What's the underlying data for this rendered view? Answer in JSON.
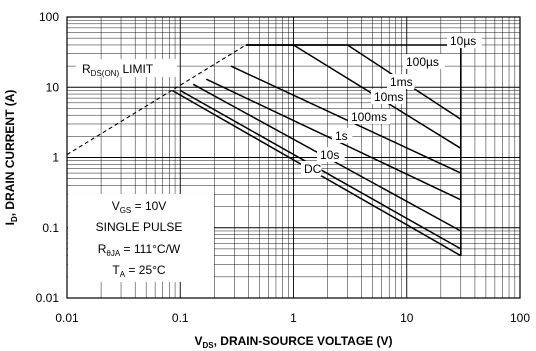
{
  "chart_data": {
    "type": "line",
    "x_scale": "log",
    "y_scale": "log",
    "xlim": [
      0.01,
      100
    ],
    "ylim": [
      0.01,
      100
    ],
    "grid": true,
    "x_ticks": [
      "0.01",
      "0.1",
      "1",
      "10",
      "100"
    ],
    "y_ticks": [
      "0.01",
      "0.1",
      "1",
      "10",
      "100"
    ],
    "xlabel": {
      "main": "V",
      "sub": "DS",
      "rest": ", DRAIN-SOURCE VOLTAGE (V)"
    },
    "ylabel": {
      "main": "I",
      "sub": "D",
      "rest": ", DRAIN CURRENT (A)"
    },
    "rdson_limit": {
      "label_main": "R",
      "label_sub": "DS(ON)",
      "label_rest": " LIMIT",
      "x": [
        0.01,
        0.38
      ],
      "y": [
        1.1,
        40
      ]
    },
    "series": [
      {
        "name": "10µs",
        "x": [
          0.38,
          6.0,
          30
        ],
        "y": [
          40,
          40,
          40
        ]
      },
      {
        "name": "100µs",
        "x": [
          0.38,
          3.0,
          30
        ],
        "y": [
          40,
          40,
          3.5
        ]
      },
      {
        "name": "1ms",
        "x": [
          0.38,
          1.0,
          30
        ],
        "y": [
          40,
          40,
          1.35
        ]
      },
      {
        "name": "10ms",
        "x": [
          0.28,
          30
        ],
        "y": [
          20,
          0.6
        ]
      },
      {
        "name": "100ms",
        "x": [
          0.17,
          30
        ],
        "y": [
          13,
          0.25
        ]
      },
      {
        "name": "1s",
        "x": [
          0.13,
          30
        ],
        "y": [
          11,
          0.09
        ]
      },
      {
        "name": "10s",
        "x": [
          0.1,
          30
        ],
        "y": [
          9,
          0.05
        ]
      },
      {
        "name": "DC",
        "x": [
          0.085,
          30
        ],
        "y": [
          9,
          0.04
        ]
      }
    ],
    "vds_limit": {
      "x": [
        30,
        30
      ],
      "y": [
        0.04,
        40
      ]
    },
    "conditions": [
      {
        "main": "V",
        "sub": "GS",
        "rest": " = 10V"
      },
      {
        "main": "SINGLE PULSE",
        "sub": "",
        "rest": ""
      },
      {
        "main": "R",
        "sub": "θJA",
        "rest": " = 111°C/W"
      },
      {
        "main": "T",
        "sub": "A",
        "rest": " = 25°C"
      }
    ]
  }
}
